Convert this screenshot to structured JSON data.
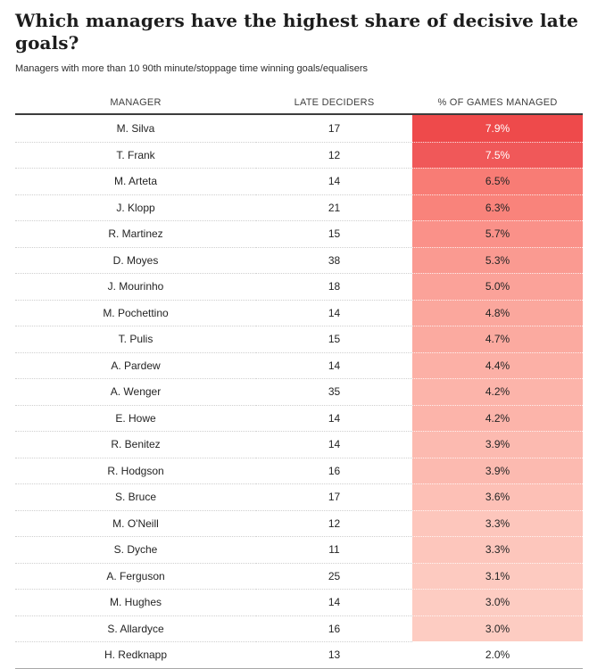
{
  "header": {
    "title": "Which managers have the highest share of decisive late goals?",
    "subtitle": "Managers with more than 10 90th minute/stoppage time winning goals/equalisers"
  },
  "table": {
    "columns": {
      "manager": "MANAGER",
      "late_deciders": "LATE DECIDERS",
      "pct_games_managed": "% OF GAMES MANAGED"
    }
  },
  "colors": {
    "heat_max": "#ee4a4b",
    "heat_min": "#ffffff",
    "top_rule": "#3c3c3c",
    "bottom_rule": "#a8a8a8",
    "row_divider": "#cfcfcf"
  },
  "chart_data": {
    "type": "table",
    "title": "Which managers have the highest share of decisive late goals?",
    "subtitle": "Managers with more than 10 90th minute/stoppage time winning goals/equalisers",
    "columns": [
      "MANAGER",
      "LATE DECIDERS",
      "% OF GAMES MANAGED"
    ],
    "heatmap": {
      "column": "% OF GAMES MANAGED",
      "max_color": "#ee4a4b",
      "min_color": "#ffffff",
      "value_range": [
        2.0,
        7.9
      ]
    },
    "rows": [
      {
        "manager": "M. Silva",
        "late_deciders": "17",
        "pct_games_managed": "7.9%",
        "pct_value": 7.9,
        "cell_color": "#ee4a4b",
        "text_color": "#ffffff"
      },
      {
        "manager": "T. Frank",
        "late_deciders": "12",
        "pct_games_managed": "7.5%",
        "pct_value": 7.5,
        "cell_color": "#f05859",
        "text_color": "#ffffff"
      },
      {
        "manager": "M. Arteta",
        "late_deciders": "14",
        "pct_games_managed": "6.5%",
        "pct_value": 6.5,
        "cell_color": "#f87c75",
        "text_color": "#242424"
      },
      {
        "manager": "J. Klopp",
        "late_deciders": "21",
        "pct_games_managed": "6.3%",
        "pct_value": 6.3,
        "cell_color": "#f9837b",
        "text_color": "#242424"
      },
      {
        "manager": "R. Martinez",
        "late_deciders": "15",
        "pct_games_managed": "5.7%",
        "pct_value": 5.7,
        "cell_color": "#fa9189",
        "text_color": "#242424"
      },
      {
        "manager": "D. Moyes",
        "late_deciders": "38",
        "pct_games_managed": "5.3%",
        "pct_value": 5.3,
        "cell_color": "#fa9a91",
        "text_color": "#242424"
      },
      {
        "manager": "J. Mourinho",
        "late_deciders": "18",
        "pct_games_managed": "5.0%",
        "pct_value": 5.0,
        "cell_color": "#fba299",
        "text_color": "#242424"
      },
      {
        "manager": "M. Pochettino",
        "late_deciders": "14",
        "pct_games_managed": "4.8%",
        "pct_value": 4.8,
        "cell_color": "#fba79d",
        "text_color": "#242424"
      },
      {
        "manager": "T. Pulis",
        "late_deciders": "15",
        "pct_games_managed": "4.7%",
        "pct_value": 4.7,
        "cell_color": "#fbaaa0",
        "text_color": "#242424"
      },
      {
        "manager": "A. Pardew",
        "late_deciders": "14",
        "pct_games_managed": "4.4%",
        "pct_value": 4.4,
        "cell_color": "#fcb0a6",
        "text_color": "#242424"
      },
      {
        "manager": "A. Wenger",
        "late_deciders": "35",
        "pct_games_managed": "4.2%",
        "pct_value": 4.2,
        "cell_color": "#fcb4aa",
        "text_color": "#242424"
      },
      {
        "manager": "E. Howe",
        "late_deciders": "14",
        "pct_games_managed": "4.2%",
        "pct_value": 4.2,
        "cell_color": "#fcb4aa",
        "text_color": "#242424"
      },
      {
        "manager": "R. Benitez",
        "late_deciders": "14",
        "pct_games_managed": "3.9%",
        "pct_value": 3.9,
        "cell_color": "#fcbab0",
        "text_color": "#242424"
      },
      {
        "manager": "R. Hodgson",
        "late_deciders": "16",
        "pct_games_managed": "3.9%",
        "pct_value": 3.9,
        "cell_color": "#fcbab0",
        "text_color": "#242424"
      },
      {
        "manager": "S. Bruce",
        "late_deciders": "17",
        "pct_games_managed": "3.6%",
        "pct_value": 3.6,
        "cell_color": "#fdc0b6",
        "text_color": "#242424"
      },
      {
        "manager": "M. O'Neill",
        "late_deciders": "12",
        "pct_games_managed": "3.3%",
        "pct_value": 3.3,
        "cell_color": "#fdc6bc",
        "text_color": "#242424"
      },
      {
        "manager": "S. Dyche",
        "late_deciders": "11",
        "pct_games_managed": "3.3%",
        "pct_value": 3.3,
        "cell_color": "#fdc6bc",
        "text_color": "#242424"
      },
      {
        "manager": "A. Ferguson",
        "late_deciders": "25",
        "pct_games_managed": "3.1%",
        "pct_value": 3.1,
        "cell_color": "#fdcac0",
        "text_color": "#242424"
      },
      {
        "manager": "M. Hughes",
        "late_deciders": "14",
        "pct_games_managed": "3.0%",
        "pct_value": 3.0,
        "cell_color": "#fdccc2",
        "text_color": "#242424"
      },
      {
        "manager": "S. Allardyce",
        "late_deciders": "16",
        "pct_games_managed": "3.0%",
        "pct_value": 3.0,
        "cell_color": "#fdccc2",
        "text_color": "#242424"
      },
      {
        "manager": "H. Redknapp",
        "late_deciders": "13",
        "pct_games_managed": "2.0%",
        "pct_value": 2.0,
        "cell_color": "#ffffff",
        "text_color": "#242424"
      }
    ]
  }
}
